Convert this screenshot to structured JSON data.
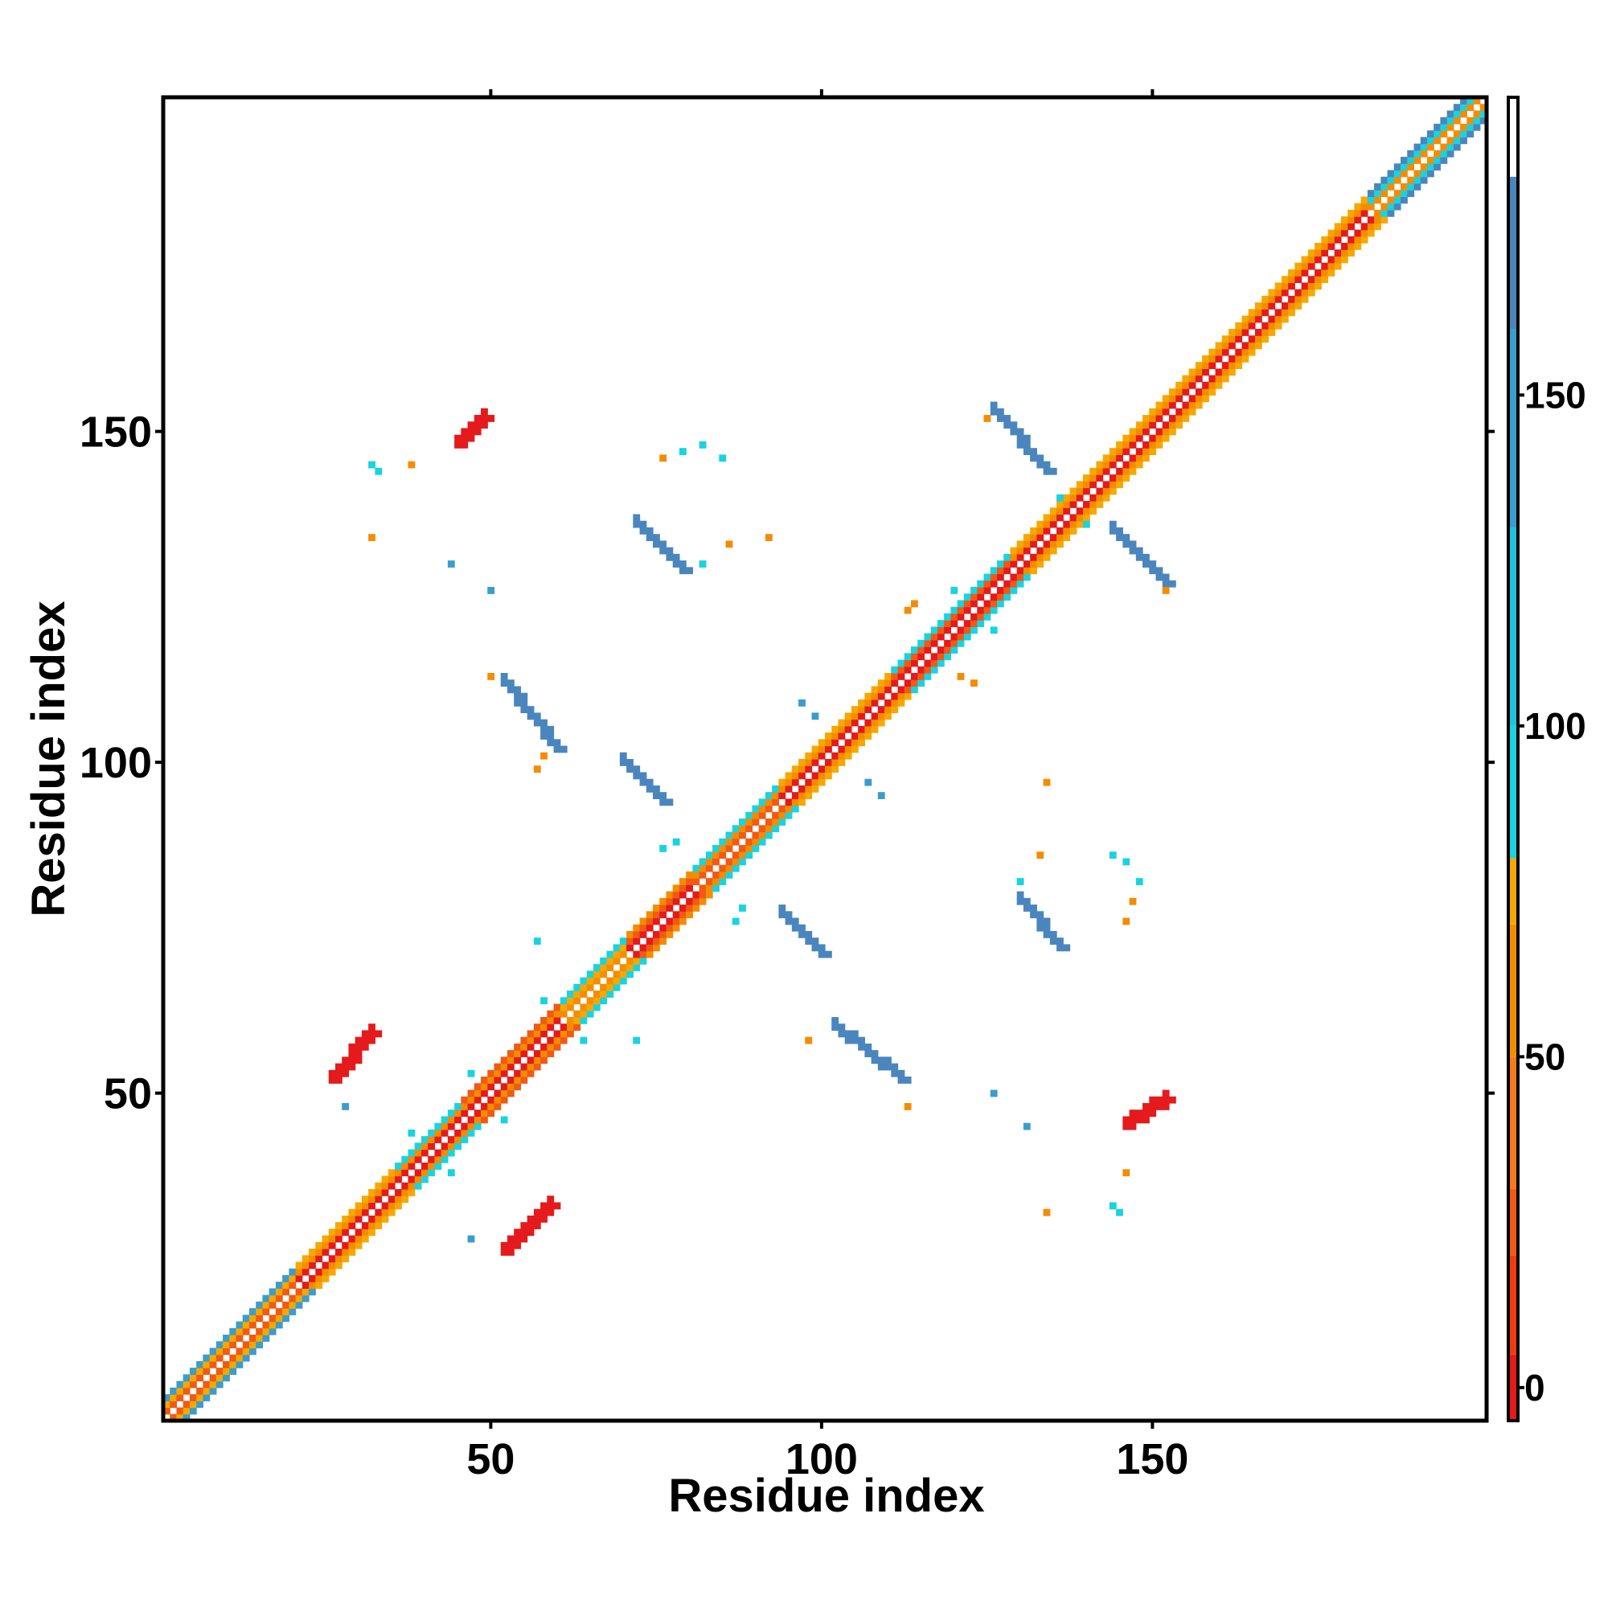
{
  "chart_data": {
    "type": "heatmap",
    "subtype": "contact-map",
    "xlabel": "Residue index",
    "ylabel": "Residue index",
    "xlim": [
      1,
      200
    ],
    "ylim": [
      1,
      200
    ],
    "x_ticks": [
      "50",
      "100",
      "150"
    ],
    "y_ticks": [
      "50",
      "100",
      "150"
    ],
    "grid": false,
    "legend": "colorbar-right",
    "colorbar": {
      "range": [
        -5,
        195
      ],
      "ticks": [
        "0",
        "50",
        "100",
        "150"
      ],
      "tick_values": [
        0,
        50,
        100,
        150
      ],
      "bands": [
        {
          "from": -5,
          "to": 5,
          "color": "#e41a1c"
        },
        {
          "from": 5,
          "to": 20,
          "color": "#f23a10"
        },
        {
          "from": 20,
          "to": 30,
          "color": "#f05a14"
        },
        {
          "from": 30,
          "to": 50,
          "color": "#f87a1c"
        },
        {
          "from": 50,
          "to": 70,
          "color": "#f58c00"
        },
        {
          "from": 70,
          "to": 80,
          "color": "#f7a800"
        },
        {
          "from": 80,
          "to": 100,
          "color": "#19d3e0"
        },
        {
          "from": 100,
          "to": 130,
          "color": "#1fc2dc"
        },
        {
          "from": 130,
          "to": 160,
          "color": "#3a9dcc"
        },
        {
          "from": 160,
          "to": 183,
          "color": "#4a86bd"
        },
        {
          "from": 183,
          "to": 195,
          "color": "#ffffff"
        }
      ]
    },
    "diagonal": [
      {
        "from": 1,
        "to": 20,
        "band_colors": [
          "#f05a14",
          "#f7a800",
          "#3a9dcc"
        ]
      },
      {
        "from": 20,
        "to": 35,
        "band_colors": [
          "#e41a1c",
          "#f58c00",
          "#f7a800"
        ]
      },
      {
        "from": 35,
        "to": 45,
        "band_colors": [
          "#e41a1c",
          "#f58c00",
          "#19d3e0"
        ]
      },
      {
        "from": 45,
        "to": 60,
        "band_colors": [
          "#e41a1c",
          "#f58c00",
          "#f05a14"
        ]
      },
      {
        "from": 60,
        "to": 70,
        "band_colors": [
          "#f58c00",
          "#f7a800",
          "#19d3e0"
        ]
      },
      {
        "from": 70,
        "to": 80,
        "band_colors": [
          "#e41a1c",
          "#f05a14",
          "#f58c00"
        ]
      },
      {
        "from": 80,
        "to": 93,
        "band_colors": [
          "#f05a14",
          "#f58c00",
          "#19d3e0"
        ]
      },
      {
        "from": 93,
        "to": 110,
        "band_colors": [
          "#e41a1c",
          "#f58c00",
          "#f7a800"
        ]
      },
      {
        "from": 110,
        "to": 128,
        "band_colors": [
          "#e41a1c",
          "#f05a14",
          "#19d3e0"
        ]
      },
      {
        "from": 128,
        "to": 140,
        "band_colors": [
          "#e41a1c",
          "#f58c00",
          "#f7a800"
        ]
      },
      {
        "from": 140,
        "to": 182,
        "band_colors": [
          "#e41a1c",
          "#f58c00",
          "#f7a800"
        ]
      },
      {
        "from": 182,
        "to": 200,
        "band_colors": [
          "#f58c00",
          "#19d3e0",
          "#4a86bd"
        ]
      }
    ],
    "strands": [
      {
        "start": [
          26,
          52
        ],
        "end": [
          32,
          59
        ],
        "width": 2,
        "color": "#e41a1c"
      },
      {
        "start": [
          59,
          33
        ],
        "end": [
          52,
          26
        ],
        "width": 2,
        "color": "#e41a1c"
      },
      {
        "start": [
          52,
          112
        ],
        "end": [
          60,
          102
        ],
        "width": 2,
        "color": "#4a86bd"
      },
      {
        "start": [
          102,
          60
        ],
        "end": [
          112,
          52
        ],
        "width": 2,
        "color": "#4a86bd"
      },
      {
        "start": [
          70,
          100
        ],
        "end": [
          76,
          94
        ],
        "width": 2,
        "color": "#4a86bd"
      },
      {
        "start": [
          94,
          77
        ],
        "end": [
          100,
          71
        ],
        "width": 2,
        "color": "#4a86bd"
      },
      {
        "start": [
          72,
          136
        ],
        "end": [
          79,
          129
        ],
        "width": 2,
        "color": "#4a86bd"
      },
      {
        "start": [
          130,
          79
        ],
        "end": [
          136,
          72
        ],
        "width": 2,
        "color": "#4a86bd"
      },
      {
        "start": [
          126,
          153
        ],
        "end": [
          134,
          144
        ],
        "width": 2,
        "color": "#4a86bd"
      },
      {
        "start": [
          144,
          135
        ],
        "end": [
          152,
          127
        ],
        "width": 2,
        "color": "#4a86bd"
      },
      {
        "start": [
          45,
          148
        ],
        "end": [
          49,
          152
        ],
        "width": 2,
        "color": "#e41a1c"
      },
      {
        "start": [
          146,
          45
        ],
        "end": [
          152,
          49
        ],
        "width": 2,
        "color": "#e41a1c"
      }
    ],
    "contacts": [
      {
        "x": 32,
        "y": 145,
        "color": "#19d3e0"
      },
      {
        "x": 33,
        "y": 144,
        "color": "#19d3e0"
      },
      {
        "x": 38,
        "y": 145,
        "color": "#f58c00"
      },
      {
        "x": 32,
        "y": 134,
        "color": "#f58c00"
      },
      {
        "x": 44,
        "y": 130,
        "color": "#3a9dcc"
      },
      {
        "x": 50,
        "y": 126,
        "color": "#3a9dcc"
      },
      {
        "x": 76,
        "y": 146,
        "color": "#f58c00"
      },
      {
        "x": 79,
        "y": 147,
        "color": "#19d3e0"
      },
      {
        "x": 82,
        "y": 148,
        "color": "#19d3e0"
      },
      {
        "x": 85,
        "y": 146,
        "color": "#19d3e0"
      },
      {
        "x": 86,
        "y": 133,
        "color": "#f58c00"
      },
      {
        "x": 82,
        "y": 130,
        "color": "#19d3e0"
      },
      {
        "x": 92,
        "y": 134,
        "color": "#f58c00"
      },
      {
        "x": 50,
        "y": 113,
        "color": "#f58c00"
      },
      {
        "x": 57,
        "y": 99,
        "color": "#f58c00"
      },
      {
        "x": 58,
        "y": 101,
        "color": "#f58c00"
      },
      {
        "x": 57,
        "y": 73,
        "color": "#19d3e0"
      },
      {
        "x": 72,
        "y": 58,
        "color": "#19d3e0"
      },
      {
        "x": 28,
        "y": 48,
        "color": "#3a9dcc"
      },
      {
        "x": 47,
        "y": 28,
        "color": "#3a9dcc"
      },
      {
        "x": 98,
        "y": 58,
        "color": "#f58c00"
      },
      {
        "x": 113,
        "y": 48,
        "color": "#f58c00"
      },
      {
        "x": 126,
        "y": 50,
        "color": "#3a9dcc"
      },
      {
        "x": 131,
        "y": 45,
        "color": "#3a9dcc"
      },
      {
        "x": 134,
        "y": 32,
        "color": "#f58c00"
      },
      {
        "x": 144,
        "y": 33,
        "color": "#19d3e0"
      },
      {
        "x": 145,
        "y": 32,
        "color": "#19d3e0"
      },
      {
        "x": 146,
        "y": 38,
        "color": "#f58c00"
      },
      {
        "x": 134,
        "y": 97,
        "color": "#f58c00"
      },
      {
        "x": 133,
        "y": 86,
        "color": "#f58c00"
      },
      {
        "x": 130,
        "y": 82,
        "color": "#19d3e0"
      },
      {
        "x": 144,
        "y": 86,
        "color": "#19d3e0"
      },
      {
        "x": 146,
        "y": 85,
        "color": "#19d3e0"
      },
      {
        "x": 148,
        "y": 82,
        "color": "#19d3e0"
      },
      {
        "x": 147,
        "y": 79,
        "color": "#f58c00"
      },
      {
        "x": 146,
        "y": 76,
        "color": "#f58c00"
      },
      {
        "x": 113,
        "y": 123,
        "color": "#f58c00"
      },
      {
        "x": 114,
        "y": 124,
        "color": "#f58c00"
      },
      {
        "x": 121,
        "y": 113,
        "color": "#f58c00"
      },
      {
        "x": 123,
        "y": 112,
        "color": "#f58c00"
      },
      {
        "x": 152,
        "y": 126,
        "color": "#f58c00"
      },
      {
        "x": 125,
        "y": 152,
        "color": "#f58c00"
      },
      {
        "x": 97,
        "y": 109,
        "color": "#3a9dcc"
      },
      {
        "x": 99,
        "y": 107,
        "color": "#3a9dcc"
      },
      {
        "x": 107,
        "y": 97,
        "color": "#3a9dcc"
      },
      {
        "x": 109,
        "y": 95,
        "color": "#3a9dcc"
      },
      {
        "x": 78,
        "y": 88,
        "color": "#19d3e0"
      },
      {
        "x": 76,
        "y": 87,
        "color": "#19d3e0"
      },
      {
        "x": 88,
        "y": 78,
        "color": "#19d3e0"
      },
      {
        "x": 87,
        "y": 76,
        "color": "#19d3e0"
      },
      {
        "x": 38,
        "y": 44,
        "color": "#19d3e0"
      },
      {
        "x": 36,
        "y": 35,
        "color": "#19d3e0"
      },
      {
        "x": 44,
        "y": 38,
        "color": "#19d3e0"
      },
      {
        "x": 52,
        "y": 46,
        "color": "#19d3e0"
      },
      {
        "x": 47,
        "y": 53,
        "color": "#19d3e0"
      },
      {
        "x": 58,
        "y": 64,
        "color": "#19d3e0"
      },
      {
        "x": 64,
        "y": 58,
        "color": "#19d3e0"
      },
      {
        "x": 120,
        "y": 126,
        "color": "#19d3e0"
      },
      {
        "x": 126,
        "y": 120,
        "color": "#19d3e0"
      },
      {
        "x": 136,
        "y": 140,
        "color": "#19d3e0"
      },
      {
        "x": 140,
        "y": 136,
        "color": "#19d3e0"
      }
    ]
  }
}
